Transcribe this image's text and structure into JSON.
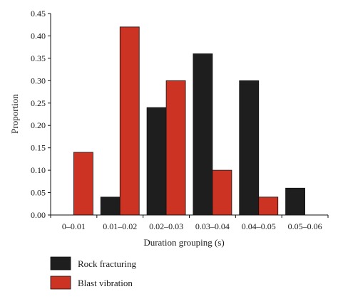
{
  "chart_data": {
    "type": "bar",
    "xlabel": "Duration grouping (s)",
    "ylabel": "Proportion",
    "ylim": [
      0,
      0.45
    ],
    "yticks": [
      "0.00",
      "0.05",
      "0.10",
      "0.15",
      "0.20",
      "0.25",
      "0.30",
      "0.35",
      "0.40",
      "0.45"
    ],
    "categories": [
      "0–0.01",
      "0.01–0.02",
      "0.02–0.03",
      "0.03–0.04",
      "0.04–0.05",
      "0.05–0.06"
    ],
    "series": [
      {
        "name": "Rock fracturing",
        "color": "#1e1e1e",
        "values": [
          0,
          0.04,
          0.24,
          0.36,
          0.3,
          0.06
        ]
      },
      {
        "name": "Blast vibration",
        "color": "#cc3322",
        "values": [
          0.14,
          0.42,
          0.3,
          0.1,
          0.04,
          0
        ]
      }
    ],
    "legend_position": "bottom-left",
    "grid": false
  }
}
